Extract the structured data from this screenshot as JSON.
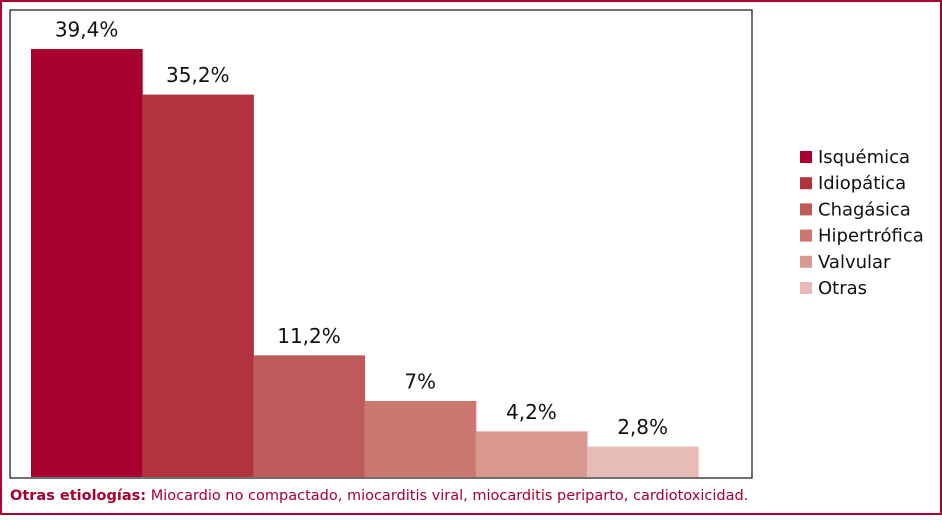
{
  "chart_data": {
    "type": "bar",
    "categories": [
      "Isquémica",
      "Idiopática",
      "Chagásica",
      "Hipertrófica",
      "Valvular",
      "Otras"
    ],
    "values": [
      39.4,
      35.2,
      11.2,
      7,
      4.2,
      2.8
    ],
    "value_labels": [
      "39,4%",
      "35,2%",
      "11,2%",
      "7%",
      "4,2%",
      "2,8%"
    ],
    "colors": [
      "#a8002f",
      "#b23340",
      "#bf5a5a",
      "#cc7870",
      "#d89890",
      "#e8bcb6"
    ],
    "legend": "right",
    "note": {
      "label": "Otras etiologías:",
      "text": "Miocardio no compactado, miocarditis viral, miocarditis periparto, cardiotoxicidad."
    }
  }
}
